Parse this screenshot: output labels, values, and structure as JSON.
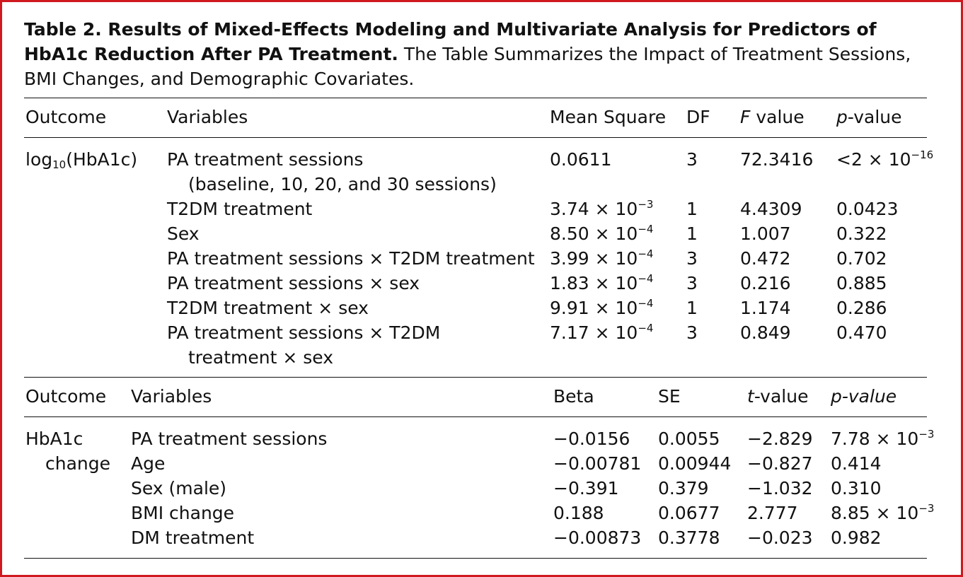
{
  "caption": {
    "bold": "Table 2.  Results of Mixed-Effects Modeling and Multivariate Analysis for Predictors of HbA1c Reduction After PA Treatment.",
    "rest": " The Table Summarizes the Impact of Treatment Sessions, BMI Changes, and Demographic Covariates."
  },
  "table1": {
    "headers": {
      "outcome": "Outcome",
      "variables": "Variables",
      "mean_square": "Mean Square",
      "df": "DF",
      "f_value_f": "F",
      "f_value_rest": " value",
      "p_value_p": "p",
      "p_value_rest": "-value"
    },
    "outcome": {
      "pre": "log",
      "sub": "10",
      "post": "(HbA1c)"
    },
    "rows": [
      {
        "var": "PA treatment sessions",
        "var2": "(baseline, 10, 20, and 30 sessions)",
        "ms": "0.0611",
        "df": "3",
        "f": "72.3416",
        "p": "<2 × 10",
        "p_exp": "−16"
      },
      {
        "var": "T2DM treatment",
        "ms": "3.74 × 10",
        "ms_exp": "−3",
        "df": "1",
        "f": "4.4309",
        "p": "0.0423"
      },
      {
        "var": "Sex",
        "ms": "8.50 × 10",
        "ms_exp": "−4",
        "df": "1",
        "f": "1.007",
        "p": "0.322"
      },
      {
        "var": "PA treatment sessions × T2DM treatment",
        "ms": "3.99 × 10",
        "ms_exp": "−4",
        "df": "3",
        "f": "0.472",
        "p": "0.702"
      },
      {
        "var": "PA treatment sessions × sex",
        "ms": "1.83 × 10",
        "ms_exp": "−4",
        "df": "3",
        "f": "0.216",
        "p": "0.885"
      },
      {
        "var": "T2DM treatment × sex",
        "ms": "9.91 × 10",
        "ms_exp": "−4",
        "df": "1",
        "f": "1.174",
        "p": "0.286"
      },
      {
        "var": "PA treatment sessions × T2DM",
        "var2": "treatment × sex",
        "ms": "7.17 × 10",
        "ms_exp": "−4",
        "df": "3",
        "f": "0.849",
        "p": "0.470"
      }
    ]
  },
  "table2": {
    "headers": {
      "outcome": "Outcome",
      "variables": "Variables",
      "beta": "Beta",
      "se": "SE",
      "t_t": "t",
      "t_rest": "-value",
      "p_value": "p-value"
    },
    "outcome_line1": "HbA1c",
    "outcome_line2": "change",
    "rows": [
      {
        "var": "PA treatment sessions",
        "beta": "−0.0156",
        "se": "0.0055",
        "t": "−2.829",
        "p": "7.78 × 10",
        "p_exp": "−3"
      },
      {
        "var": "Age",
        "beta": "−0.00781",
        "se": "0.00944",
        "t": "−0.827",
        "p": "0.414"
      },
      {
        "var": "Sex (male)",
        "beta": "−0.391",
        "se": "0.379",
        "t": "−1.032",
        "p": "0.310"
      },
      {
        "var": "BMI change",
        "beta": "0.188",
        "se": "0.0677",
        "t": "2.777",
        "p": "8.85 × 10",
        "p_exp": "−3"
      },
      {
        "var": "DM treatment",
        "beta": "−0.00873",
        "se": "0.3778",
        "t": "−0.023",
        "p": "0.982"
      }
    ]
  }
}
